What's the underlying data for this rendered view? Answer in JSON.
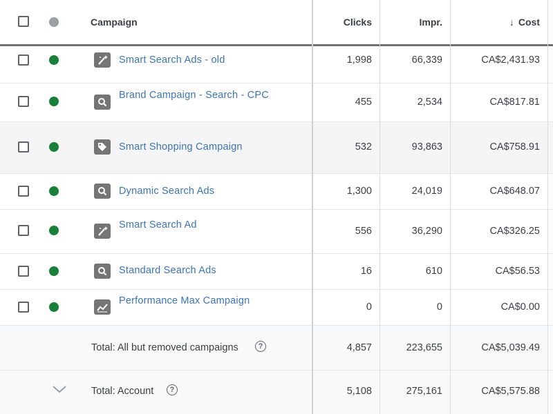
{
  "header": {
    "campaign": "Campaign",
    "clicks": "Clicks",
    "impr": "Impr.",
    "cost_arrow": "↓",
    "cost": "Cost"
  },
  "rows": [
    {
      "name": "Smart Search Ads - old",
      "type": "smart",
      "clicks": "1,998",
      "impr": "66,339",
      "cost": "CA$2,431.93"
    },
    {
      "name": "Brand Campaign - Search - CPC",
      "type": "search",
      "clicks": "455",
      "impr": "2,534",
      "cost": "CA$817.81"
    },
    {
      "name": "Smart Shopping Campaign",
      "type": "shopping",
      "clicks": "532",
      "impr": "93,863",
      "cost": "CA$758.91"
    },
    {
      "name": "Dynamic Search Ads",
      "type": "search",
      "clicks": "1,300",
      "impr": "24,019",
      "cost": "CA$648.07"
    },
    {
      "name": "Smart Search Ad",
      "type": "smart",
      "clicks": "556",
      "impr": "36,290",
      "cost": "CA$326.25"
    },
    {
      "name": "Standard Search Ads",
      "type": "search",
      "clicks": "16",
      "impr": "610",
      "cost": "CA$56.53"
    },
    {
      "name": "Performance Max Campaign",
      "type": "pmax",
      "clicks": "0",
      "impr": "0",
      "cost": "CA$0.00"
    }
  ],
  "totals": [
    {
      "label": "Total: All but removed campaigns",
      "clicks": "4,857",
      "impr": "223,655",
      "cost": "CA$5,039.49"
    },
    {
      "label": "Total: Account",
      "clicks": "5,108",
      "impr": "275,161",
      "cost": "CA$5,575.88"
    }
  ],
  "colors": {
    "enabled": "#188038",
    "link": "#3c74b4"
  }
}
